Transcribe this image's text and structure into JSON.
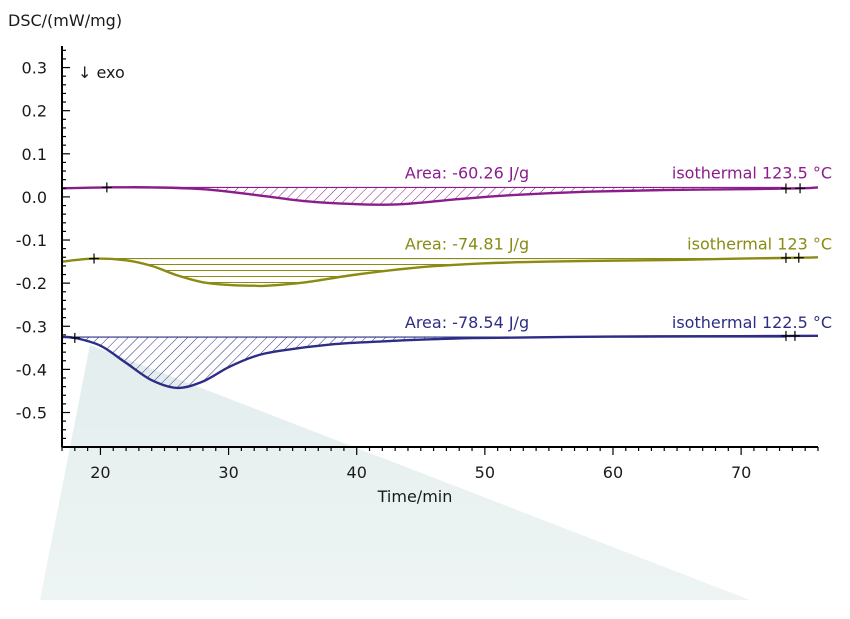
{
  "chart_data": {
    "type": "line",
    "title": "",
    "ylabel": "DSC/(mW/mg)",
    "xlabel": "Time/min",
    "annotation": "↓ exo",
    "xlim": [
      17,
      76
    ],
    "ylim": [
      -0.58,
      0.35
    ],
    "x_ticks": [
      20,
      30,
      40,
      50,
      60,
      70
    ],
    "y_ticks": [
      0.3,
      0.2,
      0.1,
      0.0,
      -0.1,
      -0.2,
      -0.3,
      -0.4,
      -0.5
    ],
    "y_tick_labels": [
      "0.3",
      "0.2",
      "0.1",
      "0.0",
      "-0.1",
      "-0.2",
      "-0.3",
      "-0.4",
      "-0.5"
    ],
    "grid": false,
    "series": [
      {
        "name": "isothermal 123.5 °C",
        "area_label": "Area: -60.26 J/g",
        "color": "#8b1d8b",
        "hatch": "diagonal",
        "baseline": 0.022,
        "area_start": 20.5,
        "area_end": 73.5,
        "markers": [
          20.5,
          73.5,
          74.6
        ],
        "x": [
          17,
          20.5,
          24,
          28,
          32,
          36,
          40,
          42,
          44,
          48,
          52,
          58,
          64,
          70,
          74.6,
          76
        ],
        "y": [
          0.02,
          0.022,
          0.022,
          0.018,
          0.005,
          -0.01,
          -0.017,
          -0.018,
          -0.016,
          -0.005,
          0.004,
          0.012,
          0.016,
          0.018,
          0.02,
          0.022
        ]
      },
      {
        "name": "isothermal 123 °C",
        "area_label": "Area: -74.81 J/g",
        "color": "#8a8a14",
        "hatch": "horizontal",
        "baseline": -0.143,
        "area_start": 19.5,
        "area_end": 73.5,
        "markers": [
          19.5,
          73.5,
          74.5
        ],
        "x": [
          17,
          19.5,
          22,
          24,
          26,
          28,
          30,
          32,
          33,
          36,
          40,
          45,
          50,
          55,
          60,
          65,
          70,
          74.5,
          76
        ],
        "y": [
          -0.15,
          -0.143,
          -0.147,
          -0.16,
          -0.182,
          -0.198,
          -0.204,
          -0.206,
          -0.206,
          -0.198,
          -0.18,
          -0.163,
          -0.154,
          -0.15,
          -0.148,
          -0.146,
          -0.143,
          -0.141,
          -0.14
        ]
      },
      {
        "name": "isothermal 122.5 °C",
        "area_label": "Area: -78.54 J/g",
        "color": "#2d2d86",
        "hatch": "diagonal",
        "baseline": -0.325,
        "area_start": 18.0,
        "area_end": 73.5,
        "markers": [
          18.0,
          73.5,
          74.2
        ],
        "x": [
          17,
          18,
          20,
          22,
          24,
          26,
          28,
          30,
          32,
          34,
          38,
          42,
          46,
          50,
          60,
          70,
          76
        ],
        "y": [
          -0.325,
          -0.327,
          -0.345,
          -0.385,
          -0.425,
          -0.443,
          -0.428,
          -0.395,
          -0.37,
          -0.357,
          -0.342,
          -0.335,
          -0.33,
          -0.327,
          -0.324,
          -0.323,
          -0.322
        ]
      }
    ]
  }
}
